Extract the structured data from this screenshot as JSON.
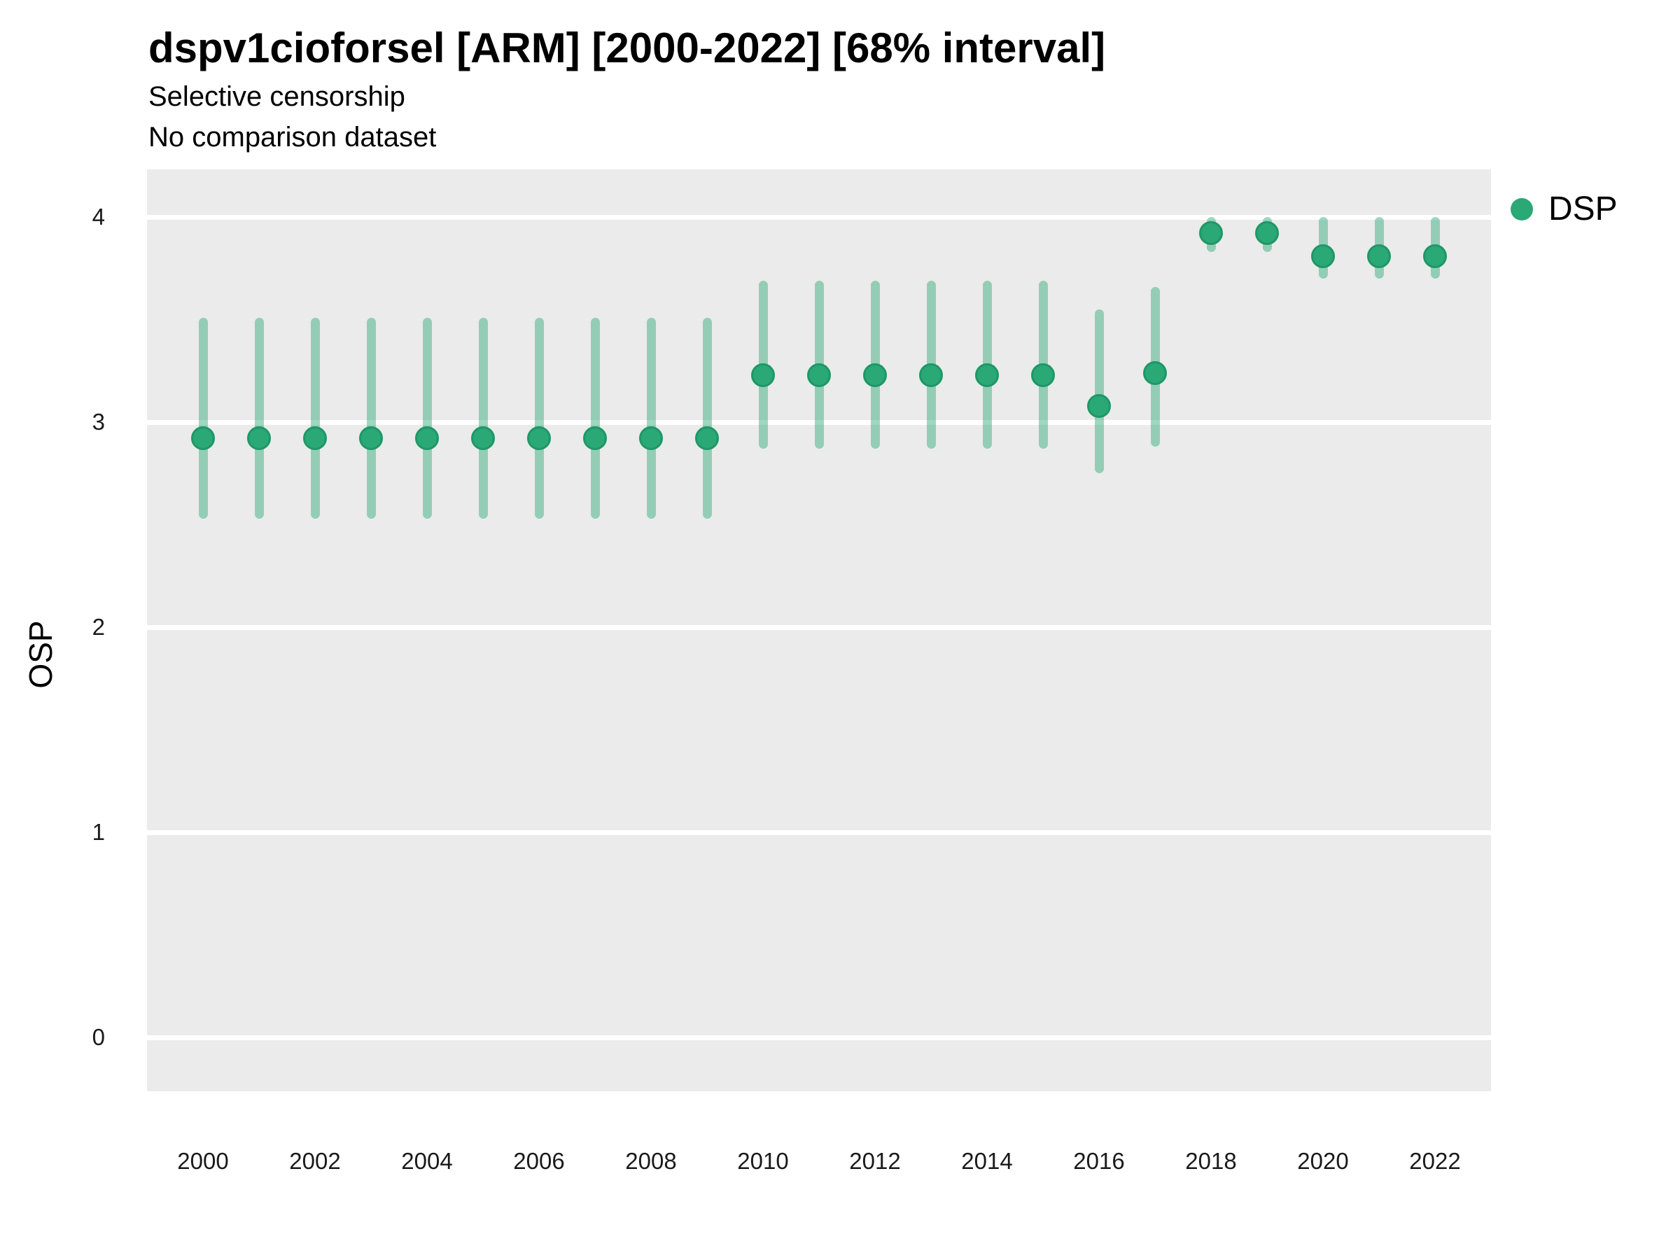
{
  "header": {
    "title": "dspv1cioforsel [ARM] [2000-2022] [68% interval]",
    "subtitle1": "Selective censorship",
    "subtitle2": "No comparison dataset"
  },
  "axes": {
    "y_label": "OSP",
    "y_tick_labels": [
      "0",
      "1",
      "2",
      "3",
      "4"
    ],
    "x_tick_labels": [
      "2000",
      "2002",
      "2004",
      "2006",
      "2008",
      "2010",
      "2012",
      "2014",
      "2016",
      "2018",
      "2020",
      "2022"
    ]
  },
  "legend": {
    "label": "DSP"
  },
  "colors": {
    "point": "#2aa876",
    "point_edge": "#1f9767",
    "interval": "rgba(42,168,118,0.45)",
    "panel_bg": "#ebebeb",
    "gridline": "#ffffff",
    "tick_text": "#1a1a1a",
    "text": "#000000"
  },
  "chart_data": {
    "type": "pointrange",
    "title": "dspv1cioforsel [ARM] [2000-2022] [68% interval]",
    "subtitle": [
      "Selective censorship",
      "No comparison dataset"
    ],
    "interval_level": "68%",
    "xlabel": "",
    "ylabel": "OSP",
    "legend_position": "right",
    "grid": "horizontal-major-only",
    "x_ticks": [
      2000,
      2002,
      2004,
      2006,
      2008,
      2010,
      2012,
      2014,
      2016,
      2018,
      2020,
      2022
    ],
    "y_ticks": [
      0,
      1,
      2,
      3,
      4
    ],
    "xlim": [
      1999,
      2023
    ],
    "ylim": [
      -0.25,
      4.23
    ],
    "x": [
      2000,
      2001,
      2002,
      2003,
      2004,
      2005,
      2006,
      2007,
      2008,
      2009,
      2010,
      2011,
      2012,
      2013,
      2014,
      2015,
      2016,
      2017,
      2018,
      2019,
      2020,
      2021,
      2022
    ],
    "series": [
      {
        "name": "DSP",
        "est": [
          2.92,
          2.92,
          2.92,
          2.92,
          2.92,
          2.92,
          2.92,
          2.92,
          2.92,
          2.92,
          3.23,
          3.23,
          3.23,
          3.23,
          3.23,
          3.23,
          3.08,
          3.24,
          3.92,
          3.92,
          3.81,
          3.81,
          3.81
        ],
        "lo": [
          2.53,
          2.53,
          2.53,
          2.53,
          2.53,
          2.53,
          2.53,
          2.53,
          2.53,
          2.53,
          2.87,
          2.87,
          2.87,
          2.87,
          2.87,
          2.87,
          2.75,
          2.88,
          3.83,
          3.83,
          3.7,
          3.7,
          3.7
        ],
        "hi": [
          3.51,
          3.51,
          3.51,
          3.51,
          3.51,
          3.51,
          3.51,
          3.51,
          3.51,
          3.51,
          3.69,
          3.69,
          3.69,
          3.69,
          3.69,
          3.69,
          3.55,
          3.66,
          4.0,
          4.0,
          4.0,
          4.0,
          4.0
        ]
      }
    ]
  }
}
